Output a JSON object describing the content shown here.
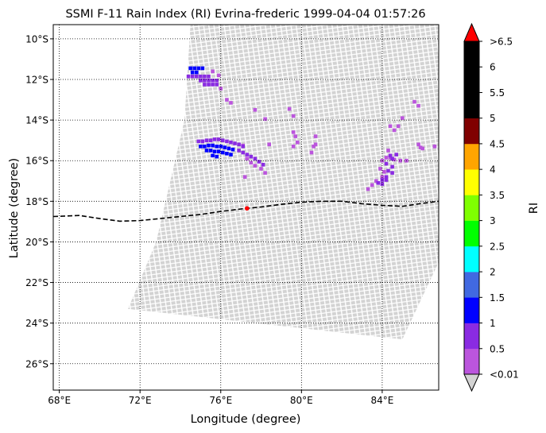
{
  "chart_data": {
    "type": "scatter",
    "title": "SSMI F-11 Rain Index (RI) Evrina-frederic 1999-04-04 01:57:26",
    "xlabel": "Longitude (degree)",
    "ylabel": "Latitude (degree)",
    "xlim": [
      67.7,
      86.8
    ],
    "ylim": [
      -27.3,
      -9.3
    ],
    "grid": true,
    "x_ticks": [
      {
        "value": 68,
        "label": "68°E"
      },
      {
        "value": 72,
        "label": "72°E"
      },
      {
        "value": 76,
        "label": "76°E"
      },
      {
        "value": 80,
        "label": "80°E"
      },
      {
        "value": 84,
        "label": "84°E"
      }
    ],
    "y_ticks": [
      {
        "value": -10,
        "label": "10°S"
      },
      {
        "value": -12,
        "label": "12°S"
      },
      {
        "value": -14,
        "label": "14°S"
      },
      {
        "value": -16,
        "label": "16°S"
      },
      {
        "value": -18,
        "label": "18°S"
      },
      {
        "value": -20,
        "label": "20°S"
      },
      {
        "value": -22,
        "label": "22°S"
      },
      {
        "value": -24,
        "label": "24°S"
      },
      {
        "value": -26,
        "label": "26°S"
      }
    ],
    "swath": {
      "color": "#d3d3d3",
      "corners_lon_lat": [
        [
          74.5,
          -9.3
        ],
        [
          86.8,
          -9.3
        ],
        [
          86.8,
          -21.0
        ],
        [
          85.0,
          -24.8
        ],
        [
          71.4,
          -23.3
        ],
        [
          72.8,
          -20.0
        ],
        [
          74.2,
          -14.0
        ]
      ]
    },
    "track": {
      "style": "dashed",
      "color": "#000000",
      "points": [
        [
          67.7,
          -18.75
        ],
        [
          69.0,
          -18.7
        ],
        [
          70.0,
          -18.85
        ],
        [
          71.0,
          -18.98
        ],
        [
          72.0,
          -18.95
        ],
        [
          73.0,
          -18.85
        ],
        [
          74.0,
          -18.75
        ],
        [
          75.0,
          -18.65
        ],
        [
          76.0,
          -18.5
        ],
        [
          77.0,
          -18.38
        ],
        [
          78.0,
          -18.28
        ],
        [
          79.0,
          -18.15
        ],
        [
          80.0,
          -18.05
        ],
        [
          81.0,
          -18.0
        ],
        [
          82.0,
          -18.0
        ],
        [
          83.0,
          -18.12
        ],
        [
          84.0,
          -18.2
        ],
        [
          85.0,
          -18.25
        ],
        [
          86.0,
          -18.1
        ],
        [
          86.8,
          -18.0
        ]
      ]
    },
    "center_marker": {
      "lon": 77.3,
      "lat": -18.35,
      "color": "#ff0000"
    },
    "rain_clusters": [
      {
        "ri": 1.2,
        "color": "#0000ff",
        "points": [
          [
            74.5,
            -11.45
          ],
          [
            74.7,
            -11.45
          ],
          [
            74.9,
            -11.45
          ],
          [
            75.1,
            -11.45
          ],
          [
            74.6,
            -11.65
          ],
          [
            74.8,
            -11.65
          ]
        ]
      },
      {
        "ri": 0.7,
        "color": "#8a2be2",
        "points": [
          [
            74.4,
            -11.85
          ],
          [
            74.6,
            -11.85
          ],
          [
            74.8,
            -11.85
          ],
          [
            75.0,
            -11.85
          ],
          [
            75.2,
            -11.85
          ],
          [
            75.4,
            -11.85
          ],
          [
            75.0,
            -12.05
          ],
          [
            75.2,
            -12.05
          ],
          [
            75.4,
            -12.05
          ],
          [
            75.6,
            -12.05
          ],
          [
            75.8,
            -12.05
          ],
          [
            75.2,
            -12.25
          ],
          [
            75.4,
            -12.25
          ],
          [
            75.6,
            -12.25
          ],
          [
            75.8,
            -12.25
          ]
        ]
      },
      {
        "ri": 0.3,
        "color": "#bb55dd",
        "points": [
          [
            75.6,
            -11.6
          ],
          [
            75.9,
            -11.8
          ],
          [
            76.0,
            -12.45
          ],
          [
            76.3,
            -13.0
          ],
          [
            76.5,
            -13.15
          ],
          [
            77.7,
            -13.5
          ],
          [
            78.2,
            -13.95
          ],
          [
            79.4,
            -13.45
          ],
          [
            79.6,
            -13.8
          ],
          [
            79.6,
            -14.6
          ],
          [
            79.7,
            -14.8
          ],
          [
            79.8,
            -15.1
          ],
          [
            79.6,
            -15.3
          ],
          [
            80.7,
            -14.8
          ],
          [
            80.6,
            -15.3
          ],
          [
            80.5,
            -15.6
          ],
          [
            80.7,
            -15.2
          ],
          [
            84.0,
            -16.0
          ],
          [
            84.2,
            -15.85
          ],
          [
            84.4,
            -15.85
          ],
          [
            84.6,
            -15.95
          ],
          [
            84.9,
            -16.0
          ],
          [
            85.2,
            -16.0
          ],
          [
            83.9,
            -16.4
          ],
          [
            84.1,
            -16.55
          ],
          [
            84.0,
            -16.8
          ],
          [
            83.7,
            -17.0
          ],
          [
            83.5,
            -17.2
          ],
          [
            83.3,
            -17.4
          ],
          [
            84.3,
            -15.5
          ],
          [
            84.4,
            -14.3
          ],
          [
            84.6,
            -14.5
          ],
          [
            84.8,
            -14.3
          ],
          [
            85.0,
            -13.9
          ],
          [
            85.6,
            -13.1
          ],
          [
            85.8,
            -13.3
          ],
          [
            86.6,
            -15.3
          ],
          [
            85.8,
            -15.2
          ],
          [
            85.9,
            -15.35
          ],
          [
            86.0,
            -15.4
          ],
          [
            78.2,
            -16.6
          ],
          [
            78.0,
            -16.4
          ],
          [
            77.7,
            -16.25
          ],
          [
            77.5,
            -16.1
          ],
          [
            77.3,
            -15.9
          ],
          [
            77.2,
            -16.8
          ],
          [
            78.4,
            -15.2
          ],
          [
            77.1,
            -15.25
          ]
        ]
      },
      {
        "ri": 0.7,
        "color": "#8a2be2",
        "points": [
          [
            74.9,
            -15.05
          ],
          [
            75.1,
            -15.05
          ],
          [
            75.3,
            -15.0
          ],
          [
            75.5,
            -15.0
          ],
          [
            75.7,
            -14.95
          ],
          [
            75.9,
            -14.95
          ],
          [
            76.1,
            -15.0
          ],
          [
            76.3,
            -15.05
          ],
          [
            76.5,
            -15.1
          ],
          [
            76.7,
            -15.15
          ],
          [
            76.9,
            -15.2
          ],
          [
            77.1,
            -15.3
          ],
          [
            76.9,
            -15.5
          ],
          [
            77.1,
            -15.6
          ],
          [
            77.3,
            -15.7
          ],
          [
            77.5,
            -15.8
          ],
          [
            77.7,
            -15.9
          ],
          [
            77.9,
            -16.05
          ],
          [
            78.1,
            -16.2
          ],
          [
            84.2,
            -16.15
          ],
          [
            84.5,
            -16.3
          ],
          [
            84.3,
            -16.5
          ],
          [
            84.5,
            -16.6
          ],
          [
            84.2,
            -16.8
          ],
          [
            84.0,
            -16.95
          ],
          [
            84.2,
            -16.95
          ],
          [
            83.8,
            -17.1
          ],
          [
            84.0,
            -17.15
          ],
          [
            84.4,
            -15.75
          ],
          [
            84.5,
            -15.9
          ],
          [
            84.7,
            -15.7
          ]
        ]
      },
      {
        "ri": 1.2,
        "color": "#0000ff",
        "points": [
          [
            75.0,
            -15.3
          ],
          [
            75.2,
            -15.3
          ],
          [
            75.4,
            -15.25
          ],
          [
            75.6,
            -15.25
          ],
          [
            75.8,
            -15.3
          ],
          [
            76.0,
            -15.3
          ],
          [
            76.2,
            -15.35
          ],
          [
            76.4,
            -15.4
          ],
          [
            76.6,
            -15.45
          ],
          [
            75.3,
            -15.5
          ],
          [
            75.5,
            -15.5
          ],
          [
            75.7,
            -15.55
          ],
          [
            75.9,
            -15.55
          ],
          [
            76.1,
            -15.6
          ],
          [
            76.3,
            -15.65
          ],
          [
            76.5,
            -15.7
          ],
          [
            75.6,
            -15.75
          ],
          [
            75.8,
            -15.8
          ]
        ]
      }
    ],
    "colorbar": {
      "label": "RI",
      "tick_labels": [
        "<0.01",
        "0.5",
        "1",
        "1.5",
        "2",
        "2.5",
        "3",
        "3.5",
        "4",
        "4.5",
        "5",
        "5.5",
        "6",
        ">6.5"
      ],
      "colors": [
        "#bb55dd",
        "#8a2be2",
        "#0000ff",
        "#4169e1",
        "#00ffff",
        "#00ff00",
        "#7fff00",
        "#ffff00",
        "#ffa500",
        "#800000",
        "#000000",
        "#000000",
        "#000000"
      ],
      "under_color": "#d3d3d3",
      "over_color": "#ff0000"
    }
  }
}
